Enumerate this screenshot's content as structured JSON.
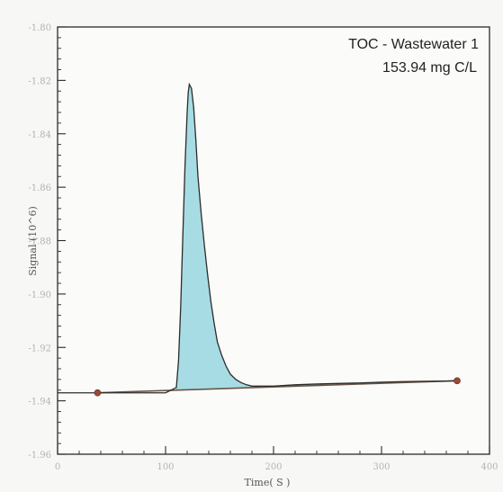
{
  "chart_data": {
    "type": "area",
    "annotation": {
      "line1": "TOC - Wastewater 1",
      "line2": "153.94 mg C/L"
    },
    "xlabel": "Time( S )",
    "ylabel": "Signal (10^6)",
    "xlim": [
      0,
      400
    ],
    "ylim": [
      -1.96,
      -1.8
    ],
    "x_ticks": [
      {
        "value": 0,
        "label": "0"
      },
      {
        "value": 100,
        "label": "100"
      },
      {
        "value": 200,
        "label": "200"
      },
      {
        "value": 300,
        "label": "300"
      },
      {
        "value": 400,
        "label": "400"
      }
    ],
    "y_ticks": [
      {
        "value": -1.8,
        "label": "-1.80"
      },
      {
        "value": -1.82,
        "label": "-1.82"
      },
      {
        "value": -1.84,
        "label": "-1.84"
      },
      {
        "value": -1.86,
        "label": "-1.86"
      },
      {
        "value": -1.88,
        "label": "-1.88"
      },
      {
        "value": -1.9,
        "label": "-1.90"
      },
      {
        "value": -1.92,
        "label": "-1.92"
      },
      {
        "value": -1.94,
        "label": "-1.94"
      },
      {
        "value": -1.96,
        "label": "-1.96"
      }
    ],
    "baseline": {
      "x": [
        37,
        370
      ],
      "y": [
        -1.937,
        -1.9325
      ]
    },
    "signal": {
      "x": [
        0,
        100,
        110,
        112,
        114,
        116,
        118,
        120,
        121,
        122,
        124,
        126,
        128,
        130,
        133,
        136,
        139,
        142,
        145,
        148,
        152,
        156,
        160,
        165,
        170,
        175,
        180,
        190,
        200,
        220,
        240,
        260,
        280,
        300,
        320,
        340,
        360,
        370
      ],
      "y": [
        -1.937,
        -1.937,
        -1.935,
        -1.925,
        -1.905,
        -1.878,
        -1.852,
        -1.832,
        -1.8245,
        -1.8215,
        -1.823,
        -1.83,
        -1.842,
        -1.856,
        -1.87,
        -1.882,
        -1.893,
        -1.903,
        -1.911,
        -1.918,
        -1.923,
        -1.927,
        -1.93,
        -1.932,
        -1.9332,
        -1.934,
        -1.9345,
        -1.9345,
        -1.9345,
        -1.934,
        -1.9337,
        -1.9335,
        -1.9333,
        -1.933,
        -1.9328,
        -1.9327,
        -1.9326,
        -1.9325
      ]
    },
    "integration_range": [
      110,
      250
    ],
    "colors": {
      "fill": "#a7dce4",
      "fill_stroke": "#7cc3cf",
      "signal": "#2c2c2c",
      "baseline": "#6a5548",
      "marker": "#9a4a3a",
      "axis": "#2a2a2a",
      "grid": "#e6e6e6"
    },
    "grid": false
  }
}
